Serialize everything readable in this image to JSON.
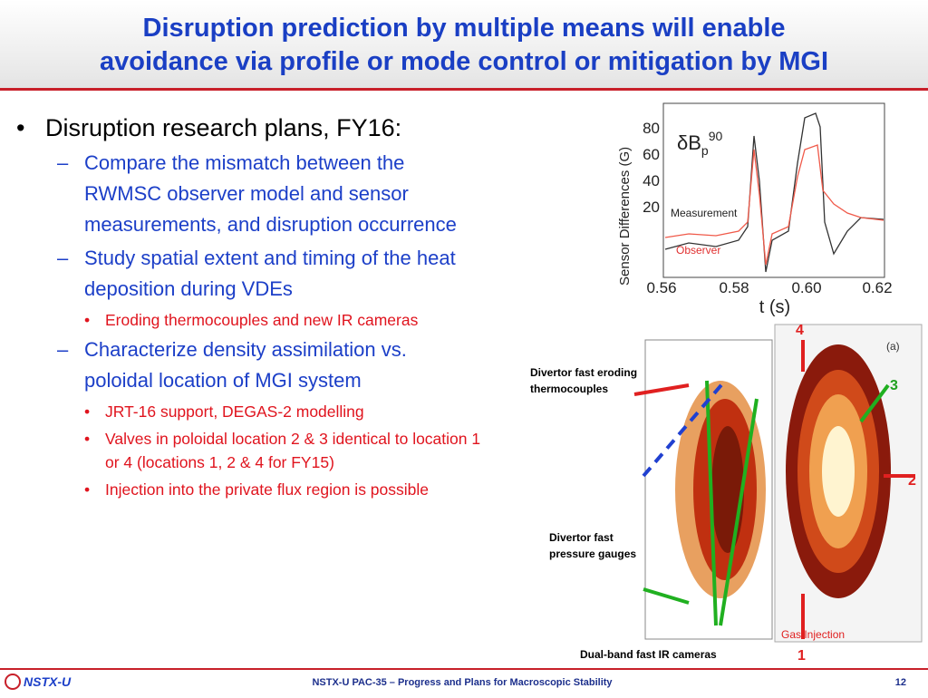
{
  "header": {
    "title_lines": [
      "Disruption prediction by multiple means will enable",
      "avoidance via profile or mode control or mitigation by MGI"
    ]
  },
  "bullets": [
    {
      "text": "Disruption research plans, FY16:",
      "items": [
        {
          "text": "Compare the mismatch between the RWMSC observer model and sensor measurements, and disruption occurrence",
          "items": []
        },
        {
          "text": "Study spatial extent and timing of the heat deposition during VDEs",
          "items": [
            "Eroding thermocouples and new IR cameras"
          ]
        },
        {
          "text": "Characterize density assimilation vs. poloidal location of MGI system",
          "items": [
            "JRT-16 support, DEGAS-2 modelling",
            "Valves in poloidal location 2 & 3 identical to location 1 or 4 (locations 1, 2 & 4 for FY15)",
            "Injection into the private flux region is possible"
          ]
        }
      ]
    }
  ],
  "plot": {
    "y_label": "Sensor Differences (G)",
    "x_label": "t (s)",
    "yticks": [
      "80",
      "60",
      "40",
      "20"
    ],
    "xticks": [
      "0.56",
      "0.58",
      "0.60",
      "0.62"
    ],
    "symbol": {
      "base": "δB",
      "sub": "p",
      "sup": "90"
    },
    "legend": [
      "Measurement",
      "Observer"
    ]
  },
  "diagram": {
    "panel": "(a)",
    "locations": [
      "1",
      "2",
      "3",
      "4"
    ],
    "gas_injection": "Gas Injection",
    "labels": {
      "thermocouples": "Divertor fast eroding thermocouples",
      "gauges": "Divertor fast pressure gauges",
      "cameras": "Dual-band fast IR cameras"
    }
  },
  "footer": {
    "logo": "NSTX-U",
    "text": "NSTX-U PAC-35 – Progress and Plans for Macroscopic Stability",
    "page": "12"
  }
}
